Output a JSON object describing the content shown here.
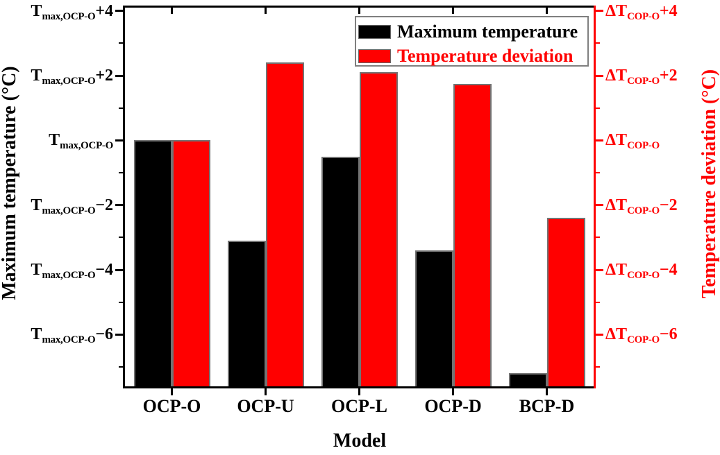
{
  "figure": {
    "background": "#ffffff",
    "x_axis": {
      "title": "Model",
      "color": "#000000"
    },
    "left_axis": {
      "title": "Maximum temperature (°C)",
      "color": "#000000"
    },
    "right_axis": {
      "title": "Temperature deviation (°C)",
      "color": "#ff0000"
    },
    "legend": {
      "border_color": "#7f7f7f",
      "items": [
        {
          "label": "Maximum temperature",
          "color": "#000000"
        },
        {
          "label": "Temperature deviation",
          "color": "#ff0000"
        }
      ]
    }
  },
  "chart_data": {
    "type": "bar",
    "title": "",
    "xlabel": "Model",
    "ylabel_left": "Maximum temperature (°C)",
    "ylabel_right": "Temperature deviation (°C)",
    "categories": [
      "OCP-O",
      "OCP-U",
      "OCP-L",
      "OCP-D",
      "BCP-D"
    ],
    "series": [
      {
        "name": "Maximum temperature",
        "axis": "left",
        "color": "#000000",
        "values": [
          0,
          -3.1,
          -0.5,
          -3.4,
          -7.2
        ]
      },
      {
        "name": "Temperature deviation",
        "axis": "right",
        "color": "#ff0000",
        "values": [
          0,
          2.4,
          2.1,
          1.75,
          -2.4
        ]
      }
    ],
    "values_relative_to": {
      "left": "T max,OCP-O",
      "right": "ΔT COP-O"
    },
    "ylim": [
      -7.6,
      4.1
    ],
    "grid": false,
    "legend_position": "top-right",
    "left_ticks": [
      {
        "value": 4,
        "base": "T",
        "sub": "max,OCP-O",
        "suffix": "+4"
      },
      {
        "value": 2,
        "base": "T",
        "sub": "max,OCP-O",
        "suffix": "+2"
      },
      {
        "value": 0,
        "base": "T",
        "sub": "max,OCP-O",
        "suffix": ""
      },
      {
        "value": -2,
        "base": "T",
        "sub": "max,OCP-O",
        "suffix": "−2"
      },
      {
        "value": -4,
        "base": "T",
        "sub": "max,OCP-O",
        "suffix": "−4"
      },
      {
        "value": -6,
        "base": "T",
        "sub": "max,OCP-O",
        "suffix": "−6"
      }
    ],
    "right_ticks": [
      {
        "value": 4,
        "base": "ΔT",
        "sub": "COP-O",
        "suffix": "+4"
      },
      {
        "value": 2,
        "base": "ΔT",
        "sub": "COP-O",
        "suffix": "+2"
      },
      {
        "value": 0,
        "base": "ΔT",
        "sub": "COP-O",
        "suffix": ""
      },
      {
        "value": -2,
        "base": "ΔT",
        "sub": "COP-O",
        "suffix": "−2"
      },
      {
        "value": -4,
        "base": "ΔT",
        "sub": "COP-O",
        "suffix": "−4"
      },
      {
        "value": -6,
        "base": "ΔT",
        "sub": "COP-O",
        "suffix": "−6"
      }
    ],
    "minor_tick_values": [
      3,
      1,
      -1,
      -3,
      -5,
      -7
    ]
  }
}
